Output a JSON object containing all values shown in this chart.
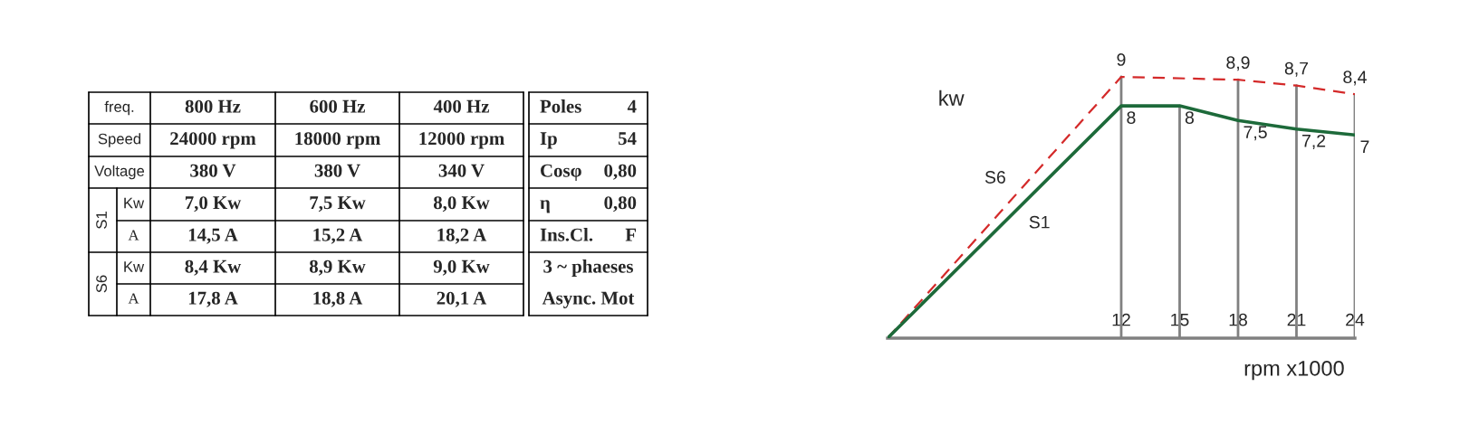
{
  "chart_data": [
    {
      "type": "other",
      "annotations": [
        "freq.",
        "800 Hz",
        "600 Hz",
        "400 Hz",
        "Speed",
        "24000 rpm",
        "18000 rpm",
        "12000 rpm",
        "Voltage",
        "380 V",
        "380 V",
        "340 V",
        "S1",
        "Kw",
        "7,0 Kw",
        "7,5 Kw",
        "8,0 Kw",
        "A",
        "14,5 A",
        "15,2 A",
        "18,2 A",
        "S6",
        "Kw",
        "8,4 Kw",
        "8,9 Kw",
        "9,0 Kw",
        "A",
        "17,8 A",
        "18,8 A",
        "20,1 A",
        "Poles",
        "4",
        "Ip",
        "54",
        "Cosφ",
        "0,80",
        "η",
        "0,80",
        "Ins.Cl.",
        "F",
        "3 ~ phaeses",
        "Async. Mot"
      ]
    },
    {
      "type": "line",
      "xlabel": "rpm x1000",
      "ylabel": "kw",
      "xlim": [
        0,
        24
      ],
      "xticks": [
        12,
        15,
        18,
        21,
        24
      ],
      "grid": "x",
      "tick_labels": "x",
      "series": [
        {
          "name": "S6",
          "color": "#d42a2a",
          "line_style": "dashed",
          "x": [
            0,
            12,
            18,
            21,
            24
          ],
          "values": [
            0,
            9,
            8.9,
            8.7,
            8.4
          ],
          "value_labels": [
            null,
            "9",
            "8,9",
            "8,7",
            "8,4"
          ]
        },
        {
          "name": "S1",
          "color": "#1d6a3a",
          "line_style": "solid",
          "x": [
            0,
            12,
            15,
            18,
            21,
            24
          ],
          "values": [
            0,
            8,
            8,
            7.5,
            7.2,
            7
          ],
          "value_labels": [
            null,
            "8",
            "8",
            "7,5",
            "7,2",
            "7"
          ]
        }
      ]
    }
  ]
}
